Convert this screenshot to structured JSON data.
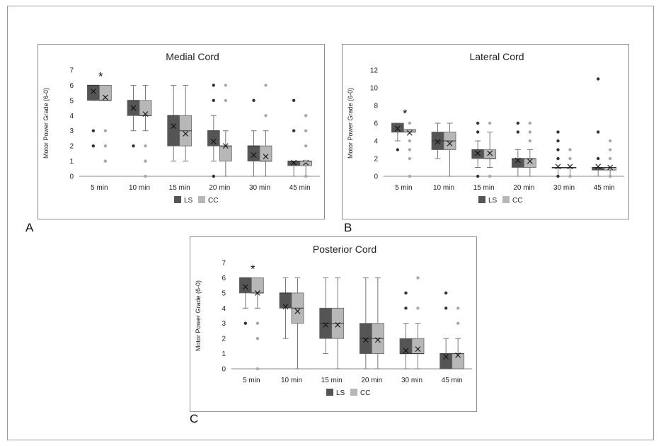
{
  "figure": {
    "panel_letters": [
      "A",
      "B",
      "C"
    ]
  },
  "colors": {
    "ls": "#555555",
    "cc": "#b7b7b7",
    "outlier_ls": "#333333",
    "outlier_cc": "#a8a8a8",
    "axis": "#888888",
    "text": "#222222"
  },
  "chart_data": [
    {
      "type": "box",
      "title": "Medial Cord",
      "ylabel": "Motor Power Grade (6-0)",
      "xlabel": "",
      "ylim": [
        0,
        7
      ],
      "yticks": [
        0,
        1,
        2,
        3,
        4,
        5,
        6,
        7
      ],
      "grid": false,
      "legend_position": "bottom",
      "categories": [
        "5 min",
        "10 min",
        "15 min",
        "20 min",
        "30 min",
        "45 min"
      ],
      "annotations": [
        {
          "category": "5 min",
          "text": "*",
          "y": 6.7
        }
      ],
      "series": [
        {
          "name": "LS",
          "boxes": [
            {
              "min": 5,
              "q1": 5,
              "median": 6,
              "q3": 6,
              "max": 6,
              "mean": 5.6,
              "outliers": [
                3,
                2
              ]
            },
            {
              "min": 3,
              "q1": 4,
              "median": 5,
              "q3": 5,
              "max": 6,
              "mean": 4.5,
              "outliers": [
                2
              ]
            },
            {
              "min": 1,
              "q1": 2,
              "median": 4,
              "q3": 4,
              "max": 6,
              "mean": 3.3,
              "outliers": []
            },
            {
              "min": 1,
              "q1": 2,
              "median": 3,
              "q3": 3,
              "max": 4,
              "mean": 2.3,
              "outliers": [
                6,
                5,
                0
              ]
            },
            {
              "min": 0,
              "q1": 1,
              "median": 2,
              "q3": 2,
              "max": 3,
              "mean": 1.4,
              "outliers": [
                5
              ]
            },
            {
              "min": 0,
              "q1": 0.7,
              "median": 1,
              "q3": 1,
              "max": 1,
              "mean": 0.9,
              "outliers": [
                5,
                3
              ]
            }
          ]
        },
        {
          "name": "CC",
          "boxes": [
            {
              "min": 5,
              "q1": 5,
              "median": 5,
              "q3": 6,
              "max": 6,
              "mean": 5.2,
              "outliers": [
                3,
                2,
                1
              ]
            },
            {
              "min": 3,
              "q1": 4,
              "median": 4,
              "q3": 5,
              "max": 6,
              "mean": 4.1,
              "outliers": [
                2,
                1,
                0
              ]
            },
            {
              "min": 1,
              "q1": 2,
              "median": 3,
              "q3": 4,
              "max": 6,
              "mean": 2.8,
              "outliers": []
            },
            {
              "min": 0,
              "q1": 1,
              "median": 2,
              "q3": 2,
              "max": 3,
              "mean": 2.0,
              "outliers": [
                6,
                5
              ]
            },
            {
              "min": 0,
              "q1": 1,
              "median": 1,
              "q3": 2,
              "max": 3,
              "mean": 1.3,
              "outliers": [
                6,
                4
              ]
            },
            {
              "min": 0,
              "q1": 0.7,
              "median": 1,
              "q3": 1,
              "max": 1,
              "mean": 0.9,
              "outliers": [
                4,
                3,
                2,
                1,
                0
              ]
            }
          ]
        }
      ]
    },
    {
      "type": "box",
      "title": "Lateral Cord",
      "ylabel": "Motor Power Grade (6-0)",
      "xlabel": "",
      "ylim": [
        0,
        12
      ],
      "yticks": [
        0,
        2,
        4,
        6,
        8,
        10,
        12
      ],
      "grid": false,
      "legend_position": "bottom",
      "categories": [
        "5 min",
        "10 min",
        "15 min",
        "20 min",
        "30 min",
        "45 min"
      ],
      "annotations": [
        {
          "category": "5 min",
          "text": "*",
          "y": 7.3
        }
      ],
      "series": [
        {
          "name": "LS",
          "boxes": [
            {
              "min": 4,
              "q1": 5,
              "median": 5,
              "q3": 6,
              "max": 6,
              "mean": 5.4,
              "outliers": [
                3
              ]
            },
            {
              "min": 2,
              "q1": 3,
              "median": 4,
              "q3": 5,
              "max": 6,
              "mean": 3.9,
              "outliers": []
            },
            {
              "min": 1,
              "q1": 2,
              "median": 3,
              "q3": 3,
              "max": 4,
              "mean": 2.6,
              "outliers": [
                6,
                5,
                0
              ]
            },
            {
              "min": 0,
              "q1": 1,
              "median": 2,
              "q3": 2,
              "max": 3,
              "mean": 1.8,
              "outliers": [
                6,
                5
              ]
            },
            {
              "min": 0,
              "q1": 1,
              "median": 1,
              "q3": 1,
              "max": 1,
              "mean": 1.1,
              "outliers": [
                5,
                4,
                3,
                2,
                0
              ]
            },
            {
              "min": 0,
              "q1": 0.7,
              "median": 1,
              "q3": 1,
              "max": 1,
              "mean": 1.1,
              "outliers": [
                11,
                5,
                2
              ]
            }
          ]
        },
        {
          "name": "CC",
          "boxes": [
            {
              "min": 5,
              "q1": 5,
              "median": 5,
              "q3": 5.3,
              "max": 5.3,
              "mean": 4.9,
              "outliers": [
                6,
                4,
                3,
                2,
                0
              ]
            },
            {
              "min": 0,
              "q1": 3,
              "median": 4,
              "q3": 5,
              "max": 6,
              "mean": 3.7,
              "outliers": []
            },
            {
              "min": 1,
              "q1": 2,
              "median": 2,
              "q3": 3,
              "max": 5,
              "mean": 2.6,
              "outliers": [
                6,
                0
              ]
            },
            {
              "min": 0,
              "q1": 1,
              "median": 2,
              "q3": 2,
              "max": 3,
              "mean": 1.7,
              "outliers": [
                6,
                5,
                4
              ]
            },
            {
              "min": 0,
              "q1": 1,
              "median": 1,
              "q3": 1,
              "max": 1,
              "mean": 1.1,
              "outliers": [
                3,
                2,
                0
              ]
            },
            {
              "min": 0,
              "q1": 0.7,
              "median": 1,
              "q3": 1,
              "max": 1,
              "mean": 1.0,
              "outliers": [
                4,
                3,
                2,
                0
              ]
            }
          ]
        }
      ]
    },
    {
      "type": "box",
      "title": "Posterior Cord",
      "ylabel": "Motor Power Grade (6-0)",
      "xlabel": "",
      "ylim": [
        0,
        7
      ],
      "yticks": [
        0,
        1,
        2,
        3,
        4,
        5,
        6,
        7
      ],
      "grid": false,
      "legend_position": "bottom",
      "categories": [
        "5 min",
        "10 min",
        "15 min",
        "20 min",
        "30 min",
        "45 min"
      ],
      "annotations": [
        {
          "category": "5 min",
          "text": "*",
          "y": 6.7
        }
      ],
      "series": [
        {
          "name": "LS",
          "boxes": [
            {
              "min": 4,
              "q1": 5,
              "median": 6,
              "q3": 6,
              "max": 6,
              "mean": 5.4,
              "outliers": [
                3
              ]
            },
            {
              "min": 2,
              "q1": 4,
              "median": 5,
              "q3": 5,
              "max": 6,
              "mean": 4.1,
              "outliers": []
            },
            {
              "min": 1,
              "q1": 2,
              "median": 3,
              "q3": 4,
              "max": 6,
              "mean": 2.9,
              "outliers": []
            },
            {
              "min": 0,
              "q1": 1,
              "median": 2,
              "q3": 3,
              "max": 6,
              "mean": 1.9,
              "outliers": []
            },
            {
              "min": 0,
              "q1": 1,
              "median": 1,
              "q3": 2,
              "max": 3,
              "mean": 1.2,
              "outliers": [
                5,
                4
              ]
            },
            {
              "min": 0,
              "q1": 0,
              "median": 1,
              "q3": 1,
              "max": 2,
              "mean": 0.8,
              "outliers": [
                5,
                4
              ]
            }
          ]
        },
        {
          "name": "CC",
          "boxes": [
            {
              "min": 4,
              "q1": 5,
              "median": 5,
              "q3": 6,
              "max": 6,
              "mean": 5.0,
              "outliers": [
                3,
                2,
                0
              ]
            },
            {
              "min": 0,
              "q1": 3,
              "median": 4,
              "q3": 5,
              "max": 6,
              "mean": 3.8,
              "outliers": []
            },
            {
              "min": 0,
              "q1": 2,
              "median": 3,
              "q3": 4,
              "max": 6,
              "mean": 2.9,
              "outliers": []
            },
            {
              "min": 0,
              "q1": 1,
              "median": 2,
              "q3": 3,
              "max": 6,
              "mean": 1.9,
              "outliers": []
            },
            {
              "min": 0,
              "q1": 1,
              "median": 1,
              "q3": 2,
              "max": 3,
              "mean": 1.3,
              "outliers": [
                6,
                4
              ]
            },
            {
              "min": 0,
              "q1": 0,
              "median": 1,
              "q3": 1,
              "max": 2,
              "mean": 0.9,
              "outliers": [
                4,
                3
              ]
            }
          ]
        }
      ]
    }
  ]
}
